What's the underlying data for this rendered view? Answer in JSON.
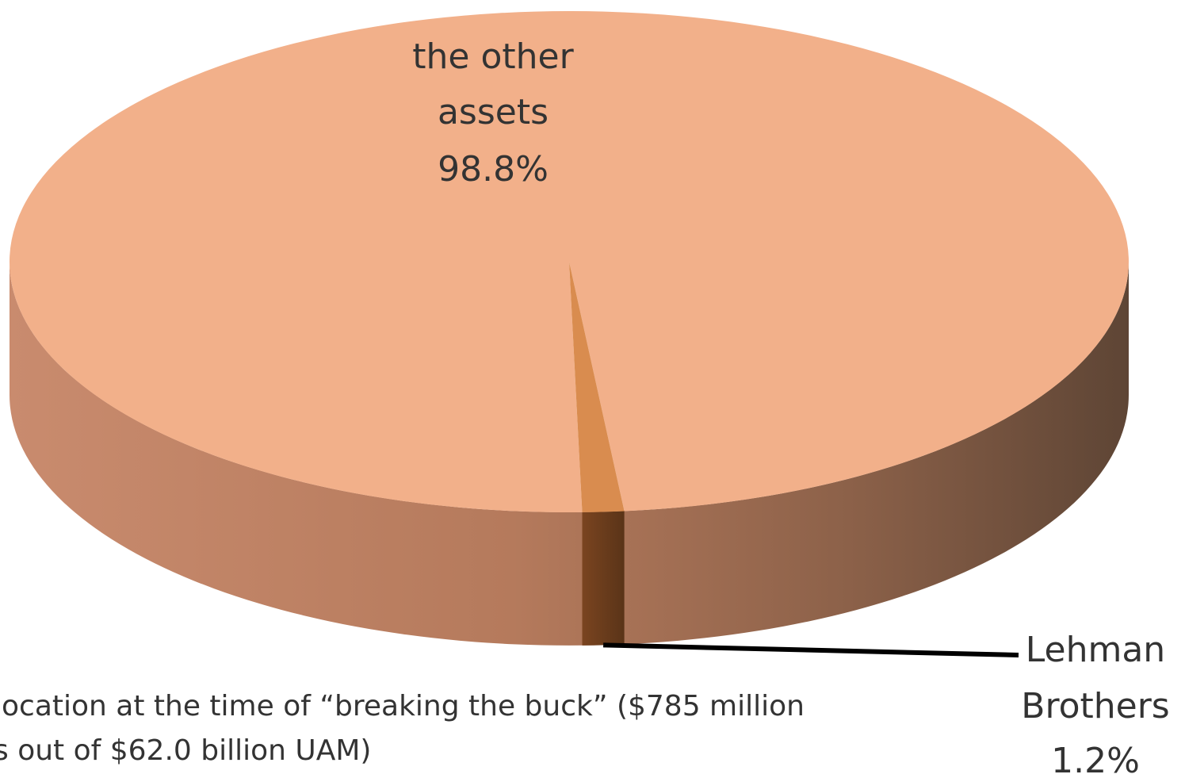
{
  "chart_data": {
    "type": "pie",
    "style": "3d",
    "title": "",
    "caption": {
      "lines": [
        "location at the time of “breaking the buck” ($785 million",
        "s out of $62.0 billion UAM)"
      ]
    },
    "slices": [
      {
        "name_lines": [
          "the other",
          "assets"
        ],
        "value": 98.8,
        "value_label": "98.8%",
        "color": "#F2B08A",
        "side_color_light": "#D9957A",
        "side_color_dark": "#5E4535"
      },
      {
        "name_lines": [
          "Lehman",
          "Brothers"
        ],
        "value": 1.2,
        "value_label": "1.2%",
        "color": "#D98C4F",
        "side_color_light": "#8A5028",
        "side_color_dark": "#5A3418"
      }
    ],
    "legend": "none",
    "grid": false
  }
}
